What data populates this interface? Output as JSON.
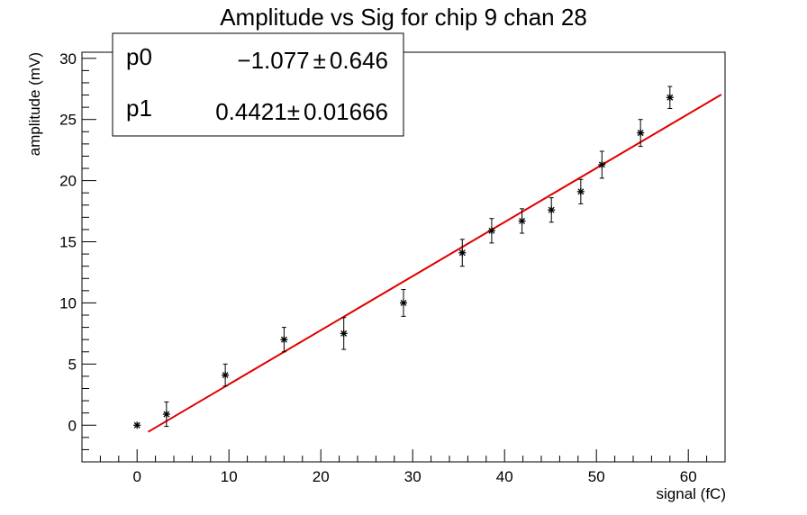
{
  "chart_data": {
    "type": "scatter",
    "title": "Amplitude vs Sig for chip 9 chan 28",
    "xlabel": "signal (fC)",
    "ylabel": "amplitude (mV)",
    "xlim": [
      -6,
      64
    ],
    "ylim": [
      -3,
      30.5
    ],
    "x_ticks": [
      0,
      10,
      20,
      30,
      40,
      50,
      60
    ],
    "y_ticks": [
      0,
      5,
      10,
      15,
      20,
      25,
      30
    ],
    "grid": false,
    "marker": "asterisk",
    "points": [
      {
        "x": 0.0,
        "y": 0.0,
        "err": 0.0
      },
      {
        "x": 3.2,
        "y": 0.9,
        "err": 1.0
      },
      {
        "x": 9.6,
        "y": 4.1,
        "err": 0.9
      },
      {
        "x": 16.0,
        "y": 7.0,
        "err": 1.0
      },
      {
        "x": 22.5,
        "y": 7.5,
        "err": 1.3
      },
      {
        "x": 29.0,
        "y": 10.0,
        "err": 1.1
      },
      {
        "x": 35.4,
        "y": 14.1,
        "err": 1.1
      },
      {
        "x": 38.6,
        "y": 15.9,
        "err": 1.0
      },
      {
        "x": 41.9,
        "y": 16.7,
        "err": 1.0
      },
      {
        "x": 45.1,
        "y": 17.6,
        "err": 1.0
      },
      {
        "x": 48.3,
        "y": 19.1,
        "err": 1.0
      },
      {
        "x": 50.6,
        "y": 21.3,
        "err": 1.1
      },
      {
        "x": 54.8,
        "y": 23.9,
        "err": 1.1
      },
      {
        "x": 58.0,
        "y": 26.8,
        "err": 0.9
      }
    ],
    "fit": {
      "color": "#e00000",
      "x_range": [
        1.2,
        63.6
      ],
      "p0": -1.077,
      "p1": 0.4421
    },
    "stats_box": {
      "position": "top-left",
      "rows": [
        {
          "name": "p0",
          "value": "−1.077",
          "error": "0.646"
        },
        {
          "name": "p1",
          "value": "0.4421",
          "error": "0.01666"
        }
      ]
    }
  }
}
